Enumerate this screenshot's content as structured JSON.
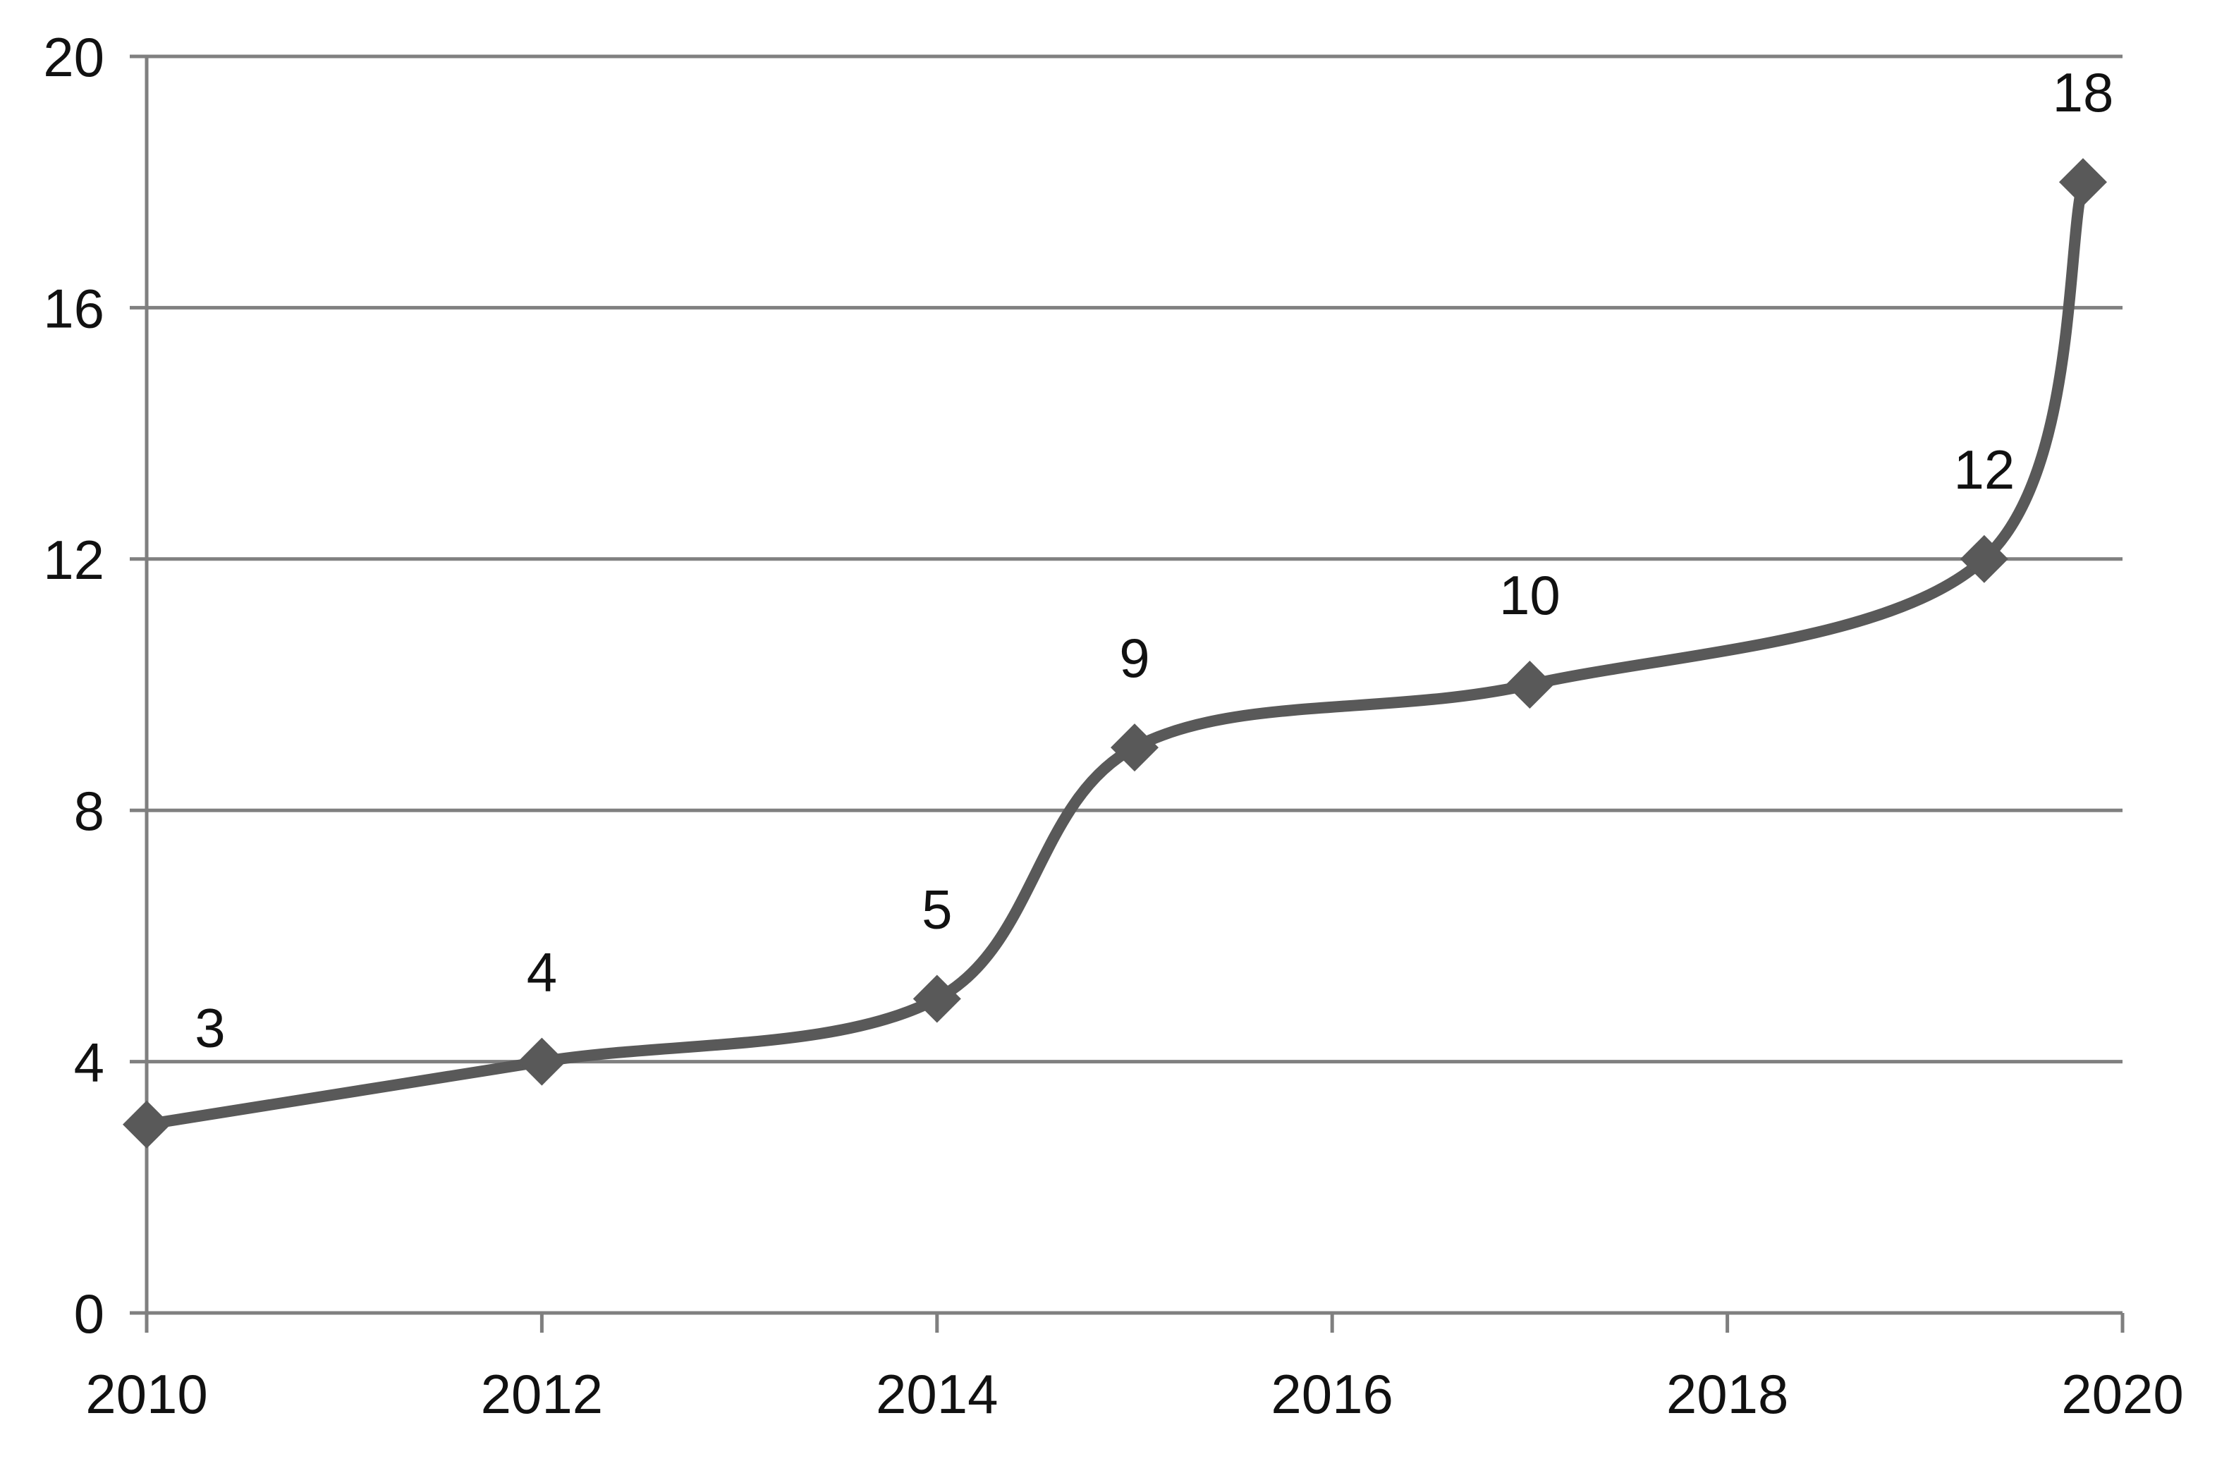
{
  "chart_data": {
    "type": "line",
    "title": "",
    "xlabel": "",
    "ylabel": "",
    "xlim": [
      2010,
      2020
    ],
    "ylim": [
      0,
      20
    ],
    "x_ticks": [
      2010,
      2012,
      2014,
      2016,
      2018,
      2020
    ],
    "y_ticks": [
      0,
      4,
      8,
      12,
      16,
      20
    ],
    "grid": "horizontal",
    "legend": "none",
    "smooth": true,
    "series": [
      {
        "x": [
          2010,
          2012,
          2014,
          2015,
          2017,
          2019.3,
          2019.8
        ],
        "values": [
          3,
          4,
          5,
          9,
          10,
          12,
          18
        ],
        "labels": [
          "3",
          "4",
          "5",
          "9",
          "10",
          "12",
          "18"
        ],
        "color": "#595959",
        "marker": "diamond"
      }
    ],
    "colors": {
      "axis": "#7f7f7f",
      "grid": "#808080",
      "line": "#595959",
      "text": "#111111"
    }
  }
}
